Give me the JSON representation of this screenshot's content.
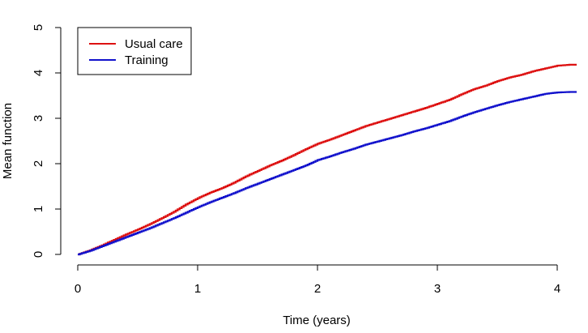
{
  "chart_data": {
    "type": "line",
    "title": "",
    "xlabel": "Time (years)",
    "ylabel": "Mean function",
    "xlim": [
      0,
      4.2
    ],
    "ylim": [
      0,
      5
    ],
    "x_ticks": [
      0,
      1,
      2,
      3,
      4
    ],
    "y_ticks": [
      0,
      1,
      2,
      3,
      4,
      5
    ],
    "grid": false,
    "legend_position": "top-left",
    "step": true,
    "series": [
      {
        "name": "Usual care",
        "color": "#dd1111",
        "x": [
          0,
          0.1,
          0.2,
          0.3,
          0.4,
          0.5,
          0.6,
          0.7,
          0.8,
          0.9,
          1.0,
          1.1,
          1.2,
          1.3,
          1.4,
          1.5,
          1.6,
          1.7,
          1.8,
          1.9,
          2.0,
          2.1,
          2.2,
          2.3,
          2.4,
          2.5,
          2.6,
          2.7,
          2.8,
          2.9,
          3.0,
          3.1,
          3.2,
          3.3,
          3.4,
          3.5,
          3.6,
          3.7,
          3.8,
          3.9,
          4.0,
          4.1,
          4.2
        ],
        "y": [
          0,
          0.09,
          0.2,
          0.32,
          0.44,
          0.55,
          0.67,
          0.8,
          0.94,
          1.1,
          1.24,
          1.36,
          1.46,
          1.58,
          1.72,
          1.84,
          1.96,
          2.07,
          2.19,
          2.32,
          2.44,
          2.53,
          2.63,
          2.73,
          2.83,
          2.91,
          2.99,
          3.07,
          3.15,
          3.23,
          3.32,
          3.41,
          3.53,
          3.64,
          3.72,
          3.82,
          3.9,
          3.96,
          4.04,
          4.1,
          4.16,
          4.18,
          4.18
        ]
      },
      {
        "name": "Training",
        "color": "#1111cc",
        "x": [
          0,
          0.1,
          0.2,
          0.3,
          0.4,
          0.5,
          0.6,
          0.7,
          0.8,
          0.9,
          1.0,
          1.1,
          1.2,
          1.3,
          1.4,
          1.5,
          1.6,
          1.7,
          1.8,
          1.9,
          2.0,
          2.1,
          2.2,
          2.3,
          2.4,
          2.5,
          2.6,
          2.7,
          2.8,
          2.9,
          3.0,
          3.1,
          3.2,
          3.3,
          3.4,
          3.5,
          3.6,
          3.7,
          3.8,
          3.9,
          4.0,
          4.1,
          4.2
        ],
        "y": [
          0,
          0.08,
          0.18,
          0.28,
          0.38,
          0.48,
          0.58,
          0.69,
          0.8,
          0.92,
          1.04,
          1.15,
          1.25,
          1.35,
          1.46,
          1.56,
          1.66,
          1.76,
          1.86,
          1.96,
          2.08,
          2.16,
          2.25,
          2.33,
          2.42,
          2.49,
          2.56,
          2.63,
          2.71,
          2.78,
          2.86,
          2.94,
          3.04,
          3.13,
          3.21,
          3.29,
          3.36,
          3.42,
          3.48,
          3.54,
          3.57,
          3.58,
          3.58
        ]
      }
    ]
  }
}
